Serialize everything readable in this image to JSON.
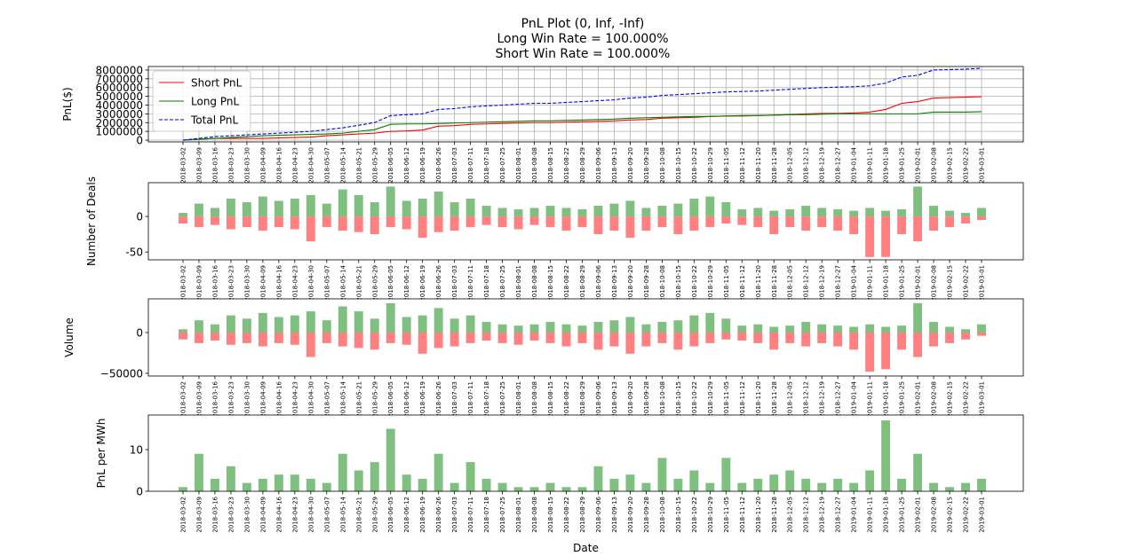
{
  "chart_data": [
    {
      "type": "line",
      "title": "PnL Plot (0, Inf, -Inf)",
      "subtitles": [
        "Long Win Rate = 100.000%",
        "Short Win Rate = 100.000%"
      ],
      "ylabel": "PnL($)",
      "grid": true,
      "legend": "upper left",
      "categories": [
        "2018-03-02",
        "2018-03-09",
        "2018-03-16",
        "2018-03-23",
        "2018-03-30",
        "2018-04-09",
        "2018-04-16",
        "2018-04-23",
        "2018-04-30",
        "2018-05-07",
        "2018-05-14",
        "2018-05-21",
        "2018-05-29",
        "2018-06-05",
        "2018-06-12",
        "2018-06-19",
        "2018-06-26",
        "2018-07-03",
        "2018-07-11",
        "2018-07-18",
        "2018-07-25",
        "2018-08-01",
        "2018-08-08",
        "2018-08-15",
        "2018-08-22",
        "2018-08-29",
        "2018-09-06",
        "2018-09-13",
        "2018-09-20",
        "2018-09-28",
        "2018-10-08",
        "2018-10-15",
        "2018-10-22",
        "2018-10-29",
        "2018-11-05",
        "2018-11-12",
        "2018-11-20",
        "2018-11-28",
        "2018-12-05",
        "2018-12-12",
        "2018-12-19",
        "2018-12-27",
        "2019-01-04",
        "2019-01-11",
        "2019-01-18",
        "2019-01-25",
        "2019-02-01",
        "2019-02-08",
        "2019-02-15",
        "2019-02-22",
        "2019-03-01"
      ],
      "ylim": [
        -200000,
        8400000
      ],
      "yticks": [
        0,
        1000000,
        2000000,
        3000000,
        4000000,
        5000000,
        6000000,
        7000000,
        8000000
      ],
      "series": [
        {
          "name": "Short PnL",
          "color": "#ff0000",
          "dashed": false,
          "values": [
            0,
            100000,
            200000,
            200000,
            200000,
            200000,
            250000,
            300000,
            350000,
            500000,
            600000,
            700000,
            800000,
            1000000,
            1050000,
            1150000,
            1600000,
            1650000,
            1800000,
            1850000,
            1900000,
            1950000,
            2000000,
            2000000,
            2050000,
            2100000,
            2150000,
            2200000,
            2300000,
            2350000,
            2500000,
            2550000,
            2600000,
            2700000,
            2750000,
            2750000,
            2800000,
            2850000,
            2900000,
            3000000,
            3050000,
            3050000,
            3100000,
            3200000,
            3500000,
            4200000,
            4400000,
            4800000,
            4850000,
            4900000,
            4950000
          ]
        },
        {
          "name": "Long PnL",
          "color": "#008000",
          "dashed": false,
          "values": [
            0,
            100000,
            200000,
            300000,
            400000,
            500000,
            550000,
            600000,
            650000,
            700000,
            800000,
            1000000,
            1200000,
            1800000,
            1850000,
            1850000,
            1900000,
            1950000,
            2000000,
            2050000,
            2100000,
            2150000,
            2200000,
            2200000,
            2250000,
            2300000,
            2350000,
            2400000,
            2500000,
            2550000,
            2600000,
            2650000,
            2700000,
            2700000,
            2750000,
            2800000,
            2800000,
            2850000,
            2900000,
            2900000,
            2950000,
            3000000,
            3000000,
            3000000,
            3000000,
            3000000,
            3000000,
            3200000,
            3200000,
            3200000,
            3250000
          ]
        },
        {
          "name": "Total PnL",
          "color": "#0000ff",
          "dashed": true,
          "values": [
            0,
            200000,
            400000,
            500000,
            600000,
            700000,
            800000,
            900000,
            1000000,
            1200000,
            1400000,
            1700000,
            2000000,
            2800000,
            2900000,
            3000000,
            3500000,
            3600000,
            3800000,
            3900000,
            4000000,
            4100000,
            4200000,
            4200000,
            4300000,
            4400000,
            4500000,
            4600000,
            4800000,
            4900000,
            5100000,
            5200000,
            5300000,
            5400000,
            5500000,
            5550000,
            5600000,
            5700000,
            5800000,
            5900000,
            6000000,
            6050000,
            6100000,
            6200000,
            6500000,
            7200000,
            7400000,
            8000000,
            8050000,
            8100000,
            8200000
          ]
        }
      ]
    },
    {
      "type": "bar",
      "ylabel": "Number of Deals",
      "categories": [
        "2018-03-02",
        "2018-03-09",
        "2018-03-16",
        "2018-03-23",
        "2018-03-30",
        "2018-04-09",
        "2018-04-16",
        "2018-04-23",
        "2018-04-30",
        "2018-05-07",
        "2018-05-14",
        "2018-05-21",
        "2018-05-29",
        "2018-06-05",
        "2018-06-12",
        "2018-06-19",
        "2018-06-26",
        "2018-07-03",
        "2018-07-11",
        "2018-07-18",
        "2018-07-25",
        "2018-08-01",
        "2018-08-08",
        "2018-08-15",
        "2018-08-22",
        "2018-08-29",
        "2018-09-06",
        "2018-09-13",
        "2018-09-20",
        "2018-09-28",
        "2018-10-08",
        "2018-10-15",
        "2018-10-22",
        "2018-10-29",
        "2018-11-05",
        "2018-11-12",
        "2018-11-20",
        "2018-11-28",
        "2018-12-05",
        "2018-12-12",
        "2018-12-19",
        "2018-12-27",
        "2019-01-04",
        "2019-01-11",
        "2019-01-18",
        "2019-01-25",
        "2019-02-01",
        "2019-02-08",
        "2019-02-15",
        "2019-02-22",
        "2019-03-01"
      ],
      "ylim": [
        -61,
        47.5
      ],
      "yticks": [
        -50,
        0
      ],
      "series": [
        {
          "color": "#7fbf7f",
          "values": [
            5,
            18,
            12,
            25,
            20,
            28,
            22,
            25,
            30,
            18,
            38,
            30,
            20,
            42,
            22,
            25,
            35,
            20,
            25,
            15,
            12,
            10,
            12,
            15,
            12,
            10,
            15,
            18,
            22,
            12,
            15,
            18,
            25,
            28,
            20,
            10,
            12,
            8,
            10,
            15,
            12,
            10,
            8,
            12,
            8,
            10,
            42,
            15,
            8,
            5,
            12
          ]
        },
        {
          "color": "#ff8080",
          "values": [
            -10,
            -15,
            -12,
            -18,
            -15,
            -20,
            -15,
            -18,
            -35,
            -15,
            -20,
            -22,
            -25,
            -15,
            -18,
            -30,
            -22,
            -20,
            -15,
            -12,
            -15,
            -18,
            -12,
            -15,
            -20,
            -15,
            -25,
            -20,
            -30,
            -20,
            -15,
            -25,
            -20,
            -15,
            -10,
            -12,
            -15,
            -25,
            -15,
            -20,
            -15,
            -20,
            -25,
            -57,
            -57,
            -25,
            -35,
            -20,
            -15,
            -10,
            -5
          ]
        }
      ]
    },
    {
      "type": "bar",
      "ylabel": "Volume",
      "categories": [
        "2018-03-02",
        "2018-03-09",
        "2018-03-16",
        "2018-03-23",
        "2018-03-30",
        "2018-04-09",
        "2018-04-16",
        "2018-04-23",
        "2018-04-30",
        "2018-05-07",
        "2018-05-14",
        "2018-05-21",
        "2018-05-29",
        "2018-06-05",
        "2018-06-12",
        "2018-06-19",
        "2018-06-26",
        "2018-07-03",
        "2018-07-11",
        "2018-07-18",
        "2018-07-25",
        "2018-08-01",
        "2018-08-08",
        "2018-08-15",
        "2018-08-22",
        "2018-08-29",
        "2018-09-06",
        "2018-09-13",
        "2018-09-20",
        "2018-09-28",
        "2018-10-08",
        "2018-10-15",
        "2018-10-22",
        "2018-10-29",
        "2018-11-05",
        "2018-11-12",
        "2018-11-20",
        "2018-11-28",
        "2018-12-05",
        "2018-12-12",
        "2018-12-19",
        "2018-12-27",
        "2019-01-04",
        "2019-01-11",
        "2019-01-18",
        "2019-01-25",
        "2019-02-01",
        "2019-02-08",
        "2019-02-15",
        "2019-02-22",
        "2019-03-01"
      ],
      "ylim": [
        -53300,
        41300
      ],
      "yticks": [
        {
          "value": -50000,
          "label": "−50000"
        },
        0
      ],
      "series": [
        {
          "color": "#7fbf7f",
          "values": [
            4000,
            15000,
            10000,
            21000,
            17000,
            24000,
            19000,
            21000,
            26000,
            15000,
            32000,
            26000,
            17000,
            36000,
            19000,
            21000,
            30000,
            17000,
            21000,
            13000,
            10000,
            8500,
            10000,
            13000,
            10000,
            8500,
            13000,
            15000,
            19000,
            10000,
            13000,
            15000,
            21000,
            24000,
            17000,
            8500,
            10000,
            7000,
            8500,
            13000,
            10000,
            8500,
            7000,
            10000,
            7000,
            8500,
            36000,
            13000,
            7000,
            4000,
            10000
          ]
        },
        {
          "color": "#ff8080",
          "values": [
            -8500,
            -13000,
            -10000,
            -15000,
            -13000,
            -17000,
            -13000,
            -15000,
            -30000,
            -13000,
            -17000,
            -19000,
            -21000,
            -13000,
            -15000,
            -26000,
            -19000,
            -17000,
            -13000,
            -10000,
            -13000,
            -15000,
            -10000,
            -13000,
            -17000,
            -13000,
            -21000,
            -17000,
            -26000,
            -17000,
            -13000,
            -21000,
            -17000,
            -13000,
            -8500,
            -10000,
            -13000,
            -21000,
            -13000,
            -17000,
            -13000,
            -17000,
            -21000,
            -48000,
            -45000,
            -21000,
            -30000,
            -17000,
            -13000,
            -8500,
            -4000
          ]
        }
      ]
    },
    {
      "type": "bar",
      "ylabel": "PnL per MWh",
      "xlabel": "Date",
      "categories": [
        "2018-03-02",
        "2018-03-09",
        "2018-03-16",
        "2018-03-23",
        "2018-03-30",
        "2018-04-09",
        "2018-04-16",
        "2018-04-23",
        "2018-04-30",
        "2018-05-07",
        "2018-05-14",
        "2018-05-21",
        "2018-05-29",
        "2018-06-05",
        "2018-06-12",
        "2018-06-19",
        "2018-06-26",
        "2018-07-03",
        "2018-07-11",
        "2018-07-18",
        "2018-07-25",
        "2018-08-01",
        "2018-08-08",
        "2018-08-15",
        "2018-08-22",
        "2018-08-29",
        "2018-09-06",
        "2018-09-13",
        "2018-09-20",
        "2018-09-28",
        "2018-10-08",
        "2018-10-15",
        "2018-10-22",
        "2018-10-29",
        "2018-11-05",
        "2018-11-12",
        "2018-11-20",
        "2018-11-28",
        "2018-12-05",
        "2018-12-12",
        "2018-12-19",
        "2018-12-27",
        "2019-01-04",
        "2019-01-11",
        "2019-01-18",
        "2019-01-25",
        "2019-02-01",
        "2019-02-08",
        "2019-02-15",
        "2019-02-22",
        "2019-03-01"
      ],
      "ylim": [
        0,
        18.3
      ],
      "yticks": [
        0,
        10
      ],
      "series": [
        {
          "color": "#7fbf7f",
          "values": [
            1,
            9,
            3,
            6,
            2,
            3,
            4,
            4,
            3,
            2,
            9,
            5,
            7,
            15,
            4,
            3,
            9,
            2,
            7,
            3,
            2,
            1,
            1,
            2,
            1,
            1,
            6,
            3,
            4,
            2,
            8,
            3,
            5,
            2,
            8,
            2,
            3,
            4,
            5,
            3,
            2,
            3,
            2,
            5,
            17,
            3,
            9,
            2,
            1,
            2,
            3
          ]
        }
      ]
    }
  ]
}
